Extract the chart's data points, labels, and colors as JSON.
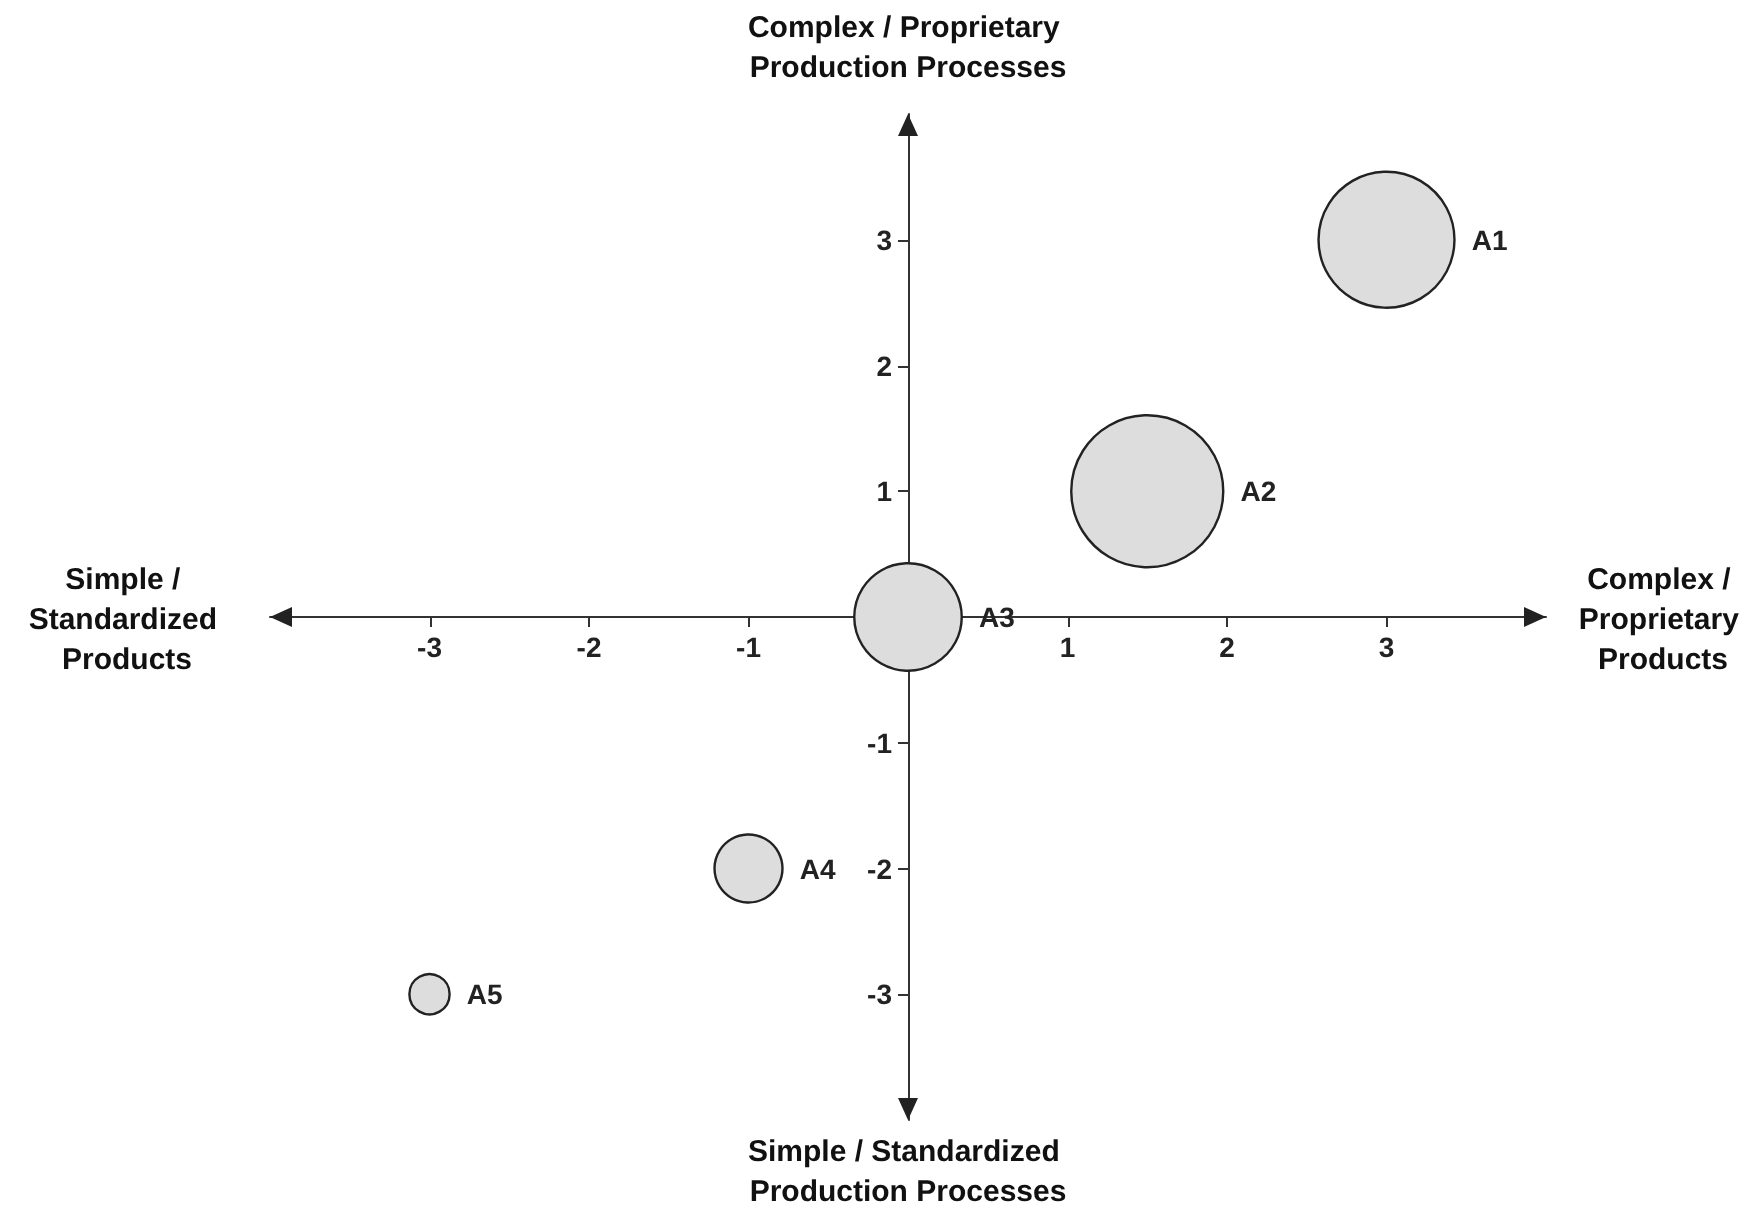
{
  "chart_data": {
    "type": "bubble",
    "xlabel": "Complex / Proprietary Products",
    "ylabel": "Complex / Proprietary Production Processes",
    "annotations": [
      "Simple / Standardized Products",
      "Simple / Standardized Production Processes"
    ],
    "xlim": [
      -4,
      4
    ],
    "ylim": [
      -4,
      4
    ],
    "xticks": [
      -3,
      -2,
      -1,
      1,
      2,
      3
    ],
    "yticks": [
      -3,
      -2,
      -1,
      1,
      2,
      3
    ],
    "series": [
      {
        "name": "A1",
        "color": "#dddddd",
        "x": [
          3
        ],
        "values": [
          3
        ],
        "sizes": [
          0.8
        ]
      },
      {
        "name": "A2",
        "color": "#dddddd",
        "x": [
          1.5
        ],
        "values": [
          1
        ],
        "sizes": [
          1
        ]
      },
      {
        "name": "A3",
        "color": "#dddddd",
        "x": [
          0
        ],
        "values": [
          0
        ],
        "sizes": [
          0.5
        ]
      },
      {
        "name": "A4",
        "color": "#dddddd",
        "x": [
          -1
        ],
        "values": [
          -2
        ],
        "sizes": [
          0.2
        ]
      },
      {
        "name": "A5",
        "color": "#dddddd",
        "x": [
          -3
        ],
        "values": [
          -3
        ],
        "sizes": [
          0.07
        ]
      }
    ]
  }
}
